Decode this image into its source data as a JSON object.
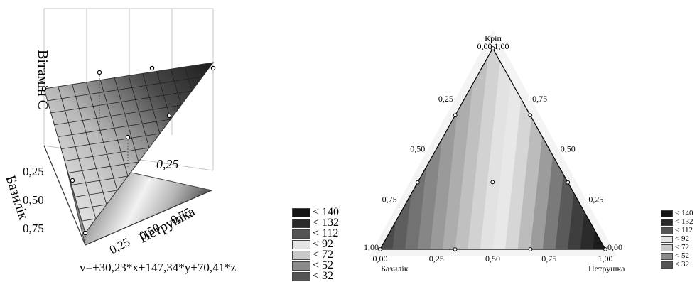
{
  "left_chart": {
    "zlabel": "Вітамін C",
    "axis_basil_label": "Базилік",
    "axis_parsley_label": "Петрушка",
    "basil_ticks": [
      "0,25",
      "0,50",
      "0,75"
    ],
    "parsley_ticks": [
      "0,25",
      "0,50",
      "0,75"
    ],
    "back_tick": "0,25",
    "equation": "v=+30,23*x+147,34*y+70,41*z"
  },
  "right_chart": {
    "top_label": "Кріп",
    "left_label": "Базилік",
    "right_label": "Петрушка",
    "apex_label": "0,00 1,00",
    "left_corner_label": "1,00",
    "right_corner_label": "0,00",
    "left_edge_ticks": [
      "0,25",
      "0,50",
      "0,75"
    ],
    "right_edge_ticks": [
      "0,75",
      "0,50",
      "0,25"
    ],
    "bottom_ticks": [
      "0,00",
      "0,25",
      "0,50",
      "0,75",
      "1,00"
    ]
  },
  "legend": {
    "items": [
      {
        "label": "< 140",
        "color": "#151515"
      },
      {
        "label": "< 132",
        "color": "#2a2a2a"
      },
      {
        "label": "< 112",
        "color": "#555555"
      },
      {
        "label": "< 92",
        "color": "#e4e4e4"
      },
      {
        "label": "< 72",
        "color": "#c8c8c8"
      },
      {
        "label": "< 52",
        "color": "#8a8a8a"
      },
      {
        "label": "< 32",
        "color": "#545454"
      }
    ]
  },
  "chart_data": [
    {
      "type": "surface",
      "title": "",
      "equation": "v=+30,23*x+147,34*y+70,41*z",
      "coefficients": {
        "x": 30.23,
        "y": 147.34,
        "z": 70.41
      },
      "zlabel": "Вітамін C",
      "axes": [
        "Базилік",
        "Петрушка"
      ],
      "legend": [
        "< 140",
        "< 132",
        "< 112",
        "< 92",
        "< 72",
        "< 52",
        "< 32"
      ],
      "legend_position": "bottom-right"
    },
    {
      "type": "ternary_contour",
      "title": "",
      "components": [
        "Базилік",
        "Петрушка",
        "Кріп"
      ],
      "ticks": [
        "0,00",
        "0,25",
        "0,50",
        "0,75",
        "1,00"
      ],
      "design_points": [
        {
          "basil": 1.0,
          "parsley": 0.0,
          "dill": 0.0
        },
        {
          "basil": 0.0,
          "parsley": 1.0,
          "dill": 0.0
        },
        {
          "basil": 0.0,
          "parsley": 0.0,
          "dill": 1.0
        },
        {
          "basil": 0.667,
          "parsley": 0.333,
          "dill": 0.0
        },
        {
          "basil": 0.333,
          "parsley": 0.667,
          "dill": 0.0
        },
        {
          "basil": 0.667,
          "parsley": 0.0,
          "dill": 0.333
        },
        {
          "basil": 0.333,
          "parsley": 0.0,
          "dill": 0.667
        },
        {
          "basil": 0.0,
          "parsley": 0.667,
          "dill": 0.333
        },
        {
          "basil": 0.0,
          "parsley": 0.333,
          "dill": 0.667
        },
        {
          "basil": 0.333,
          "parsley": 0.333,
          "dill": 0.333
        }
      ],
      "legend": [
        "< 140",
        "< 132",
        "< 112",
        "< 92",
        "< 72",
        "< 52",
        "< 32"
      ],
      "legend_position": "bottom-right"
    }
  ]
}
